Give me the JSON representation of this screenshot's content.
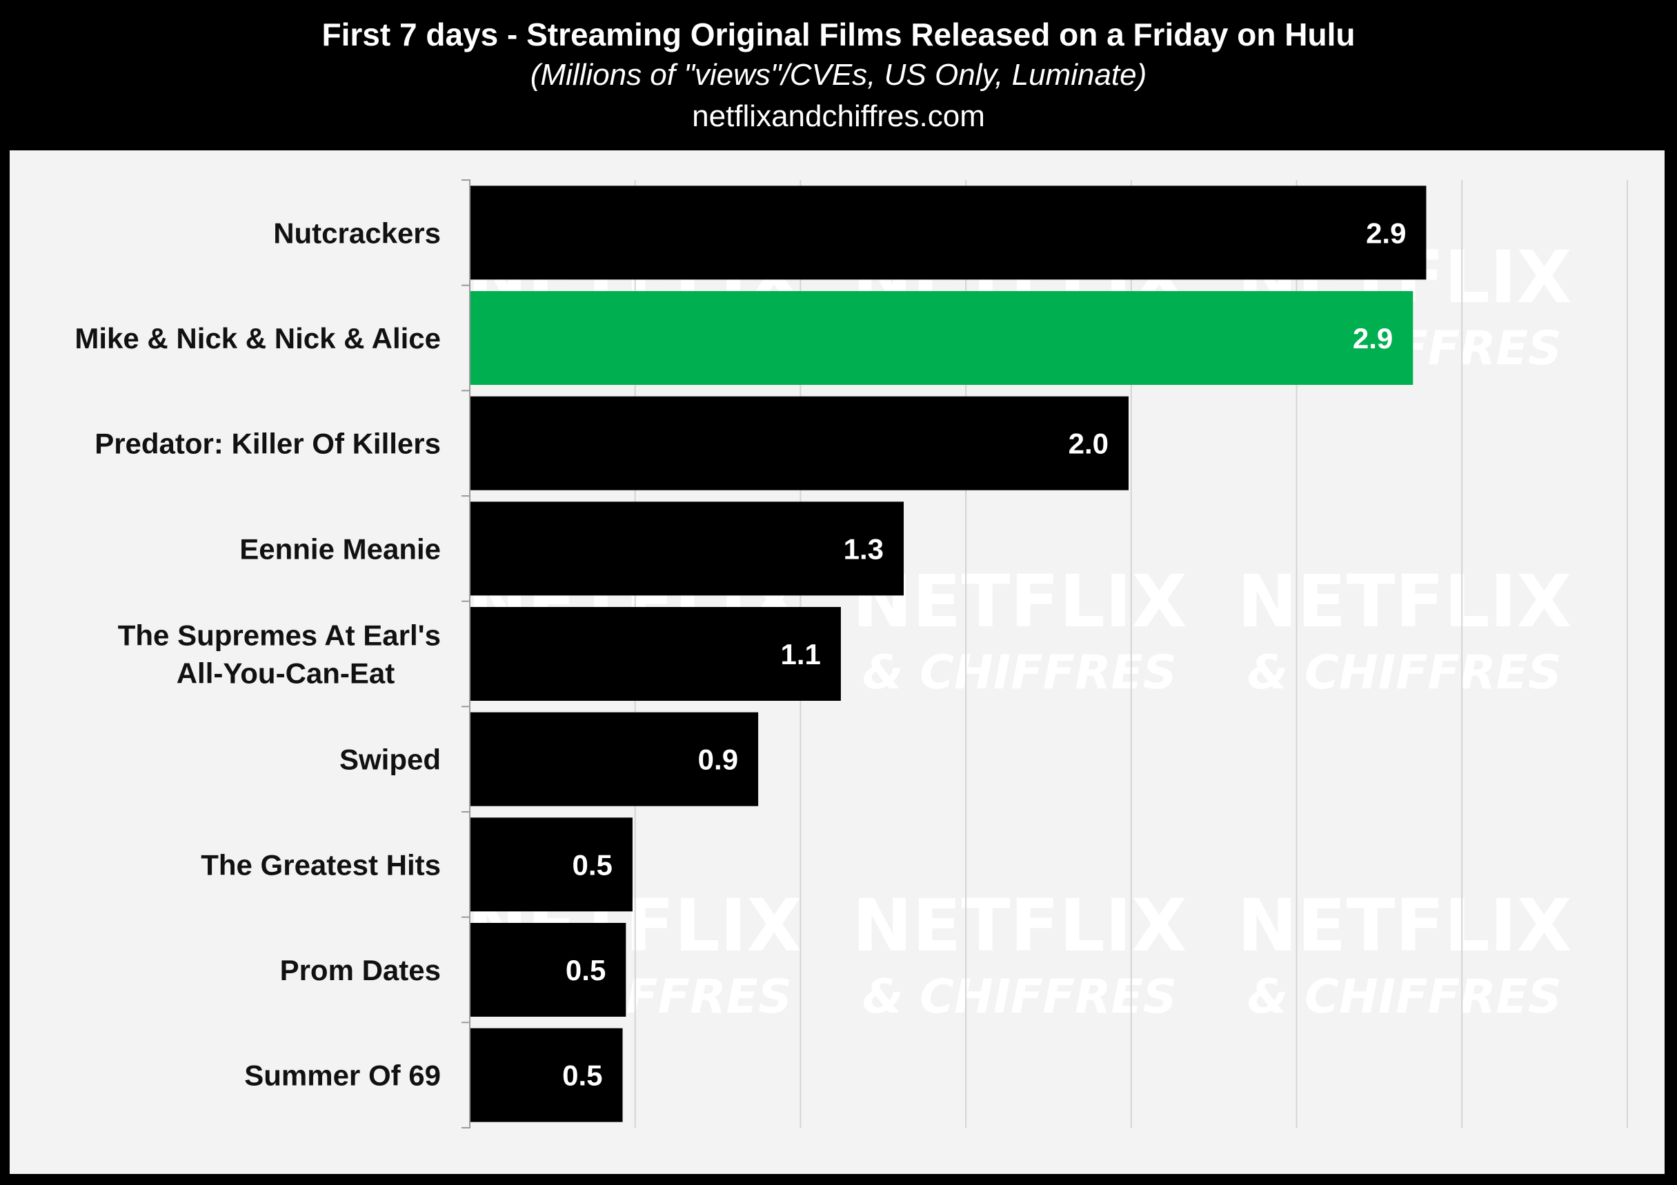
{
  "header": {
    "title": "First 7 days - Streaming Original Films Released on a Friday on Hulu",
    "subtitle": "(Millions of \"views\"/CVEs, US Only, Luminate)",
    "source": "netflixandchiffres.com"
  },
  "watermark": {
    "line1": "NETFLIX",
    "line2": "& CHIFFRES"
  },
  "colors": {
    "header_bg": "#000000",
    "plot_bg": "#f3f3f3",
    "bar_default": "#000000",
    "bar_highlight": "#00b050",
    "gridline": "#d4d4d4"
  },
  "chart_data": {
    "type": "bar",
    "orientation": "horizontal",
    "title": "First 7 days - Streaming Original Films Released on a Friday on Hulu",
    "subtitle": "(Millions of \"views\"/CVEs, US Only, Luminate)",
    "xlabel": "",
    "ylabel": "",
    "xlim": [
      0,
      3.5
    ],
    "grid": true,
    "categories": [
      "Nutcrackers",
      "Mike & Nick & Nick & Alice",
      "Predator: Killer Of Killers",
      "Eennie Meanie",
      "The Supremes At Earl's All-You-Can-Eat",
      "Swiped",
      "The Greatest Hits",
      "Prom Dates",
      "Summer Of 69"
    ],
    "values": [
      2.89,
      2.85,
      1.99,
      1.31,
      1.12,
      0.87,
      0.49,
      0.47,
      0.46
    ],
    "data_labels": [
      "2.9",
      "2.9",
      "2.0",
      "1.3",
      "1.1",
      "0.9",
      "0.5",
      "0.5",
      "0.5"
    ],
    "highlight_index": 1
  }
}
